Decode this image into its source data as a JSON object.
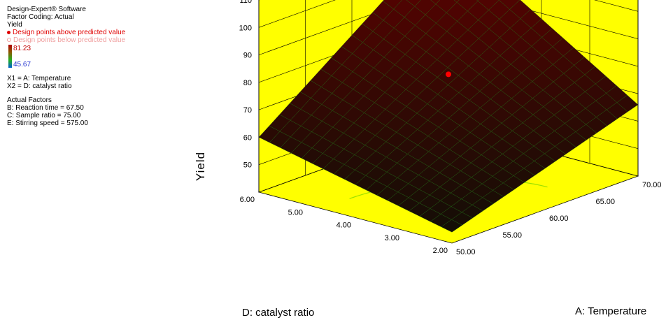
{
  "legend": {
    "software": "Design-Expert® Software",
    "coding": "Factor Coding: Actual",
    "response": "Yield",
    "above": "Design points above predicted value",
    "below": "Design points below predicted value",
    "color_max": "81.23",
    "color_min": "45.67",
    "x1": "X1 = A: Temperature",
    "x2": "X2 = D: catalyst ratio",
    "actual_title": "Actual Factors",
    "actual": [
      "B: Reaction time = 67.50",
      "C: Sample ratio = 75.00",
      "E: Stirring speed = 575.00"
    ],
    "colors": {
      "above": "#e00000",
      "below": "#f0a0a0"
    }
  },
  "chart_data": {
    "type": "surface",
    "zlabel": "Yield",
    "xlabel": "A: Temperature",
    "ylabel": "D: catalyst ratio",
    "x_ticks": [
      "50.00",
      "55.00",
      "60.00",
      "65.00",
      "70.00"
    ],
    "y_ticks": [
      "2.00",
      "3.00",
      "4.00",
      "5.00",
      "6.00"
    ],
    "z_ticks": [
      "50",
      "60",
      "70",
      "80",
      "90",
      "100",
      "110"
    ],
    "xlim": [
      50,
      70
    ],
    "ylim": [
      2,
      6
    ],
    "zlim": [
      40,
      110
    ],
    "corners": [
      {
        "x": 50,
        "y": 2,
        "z": 44
      },
      {
        "x": 70,
        "y": 2,
        "z": 66
      },
      {
        "x": 50,
        "y": 6,
        "z": 60
      },
      {
        "x": 70,
        "y": 6,
        "z": 110
      }
    ],
    "design_point": {
      "x": 60,
      "y": 4,
      "z": 80
    },
    "colors": {
      "wall": "#ffff00",
      "surface_high": "#5a0000",
      "surface_low": "#000000",
      "contour_red": "#ff2a00",
      "contour_green": "#9be000"
    }
  }
}
